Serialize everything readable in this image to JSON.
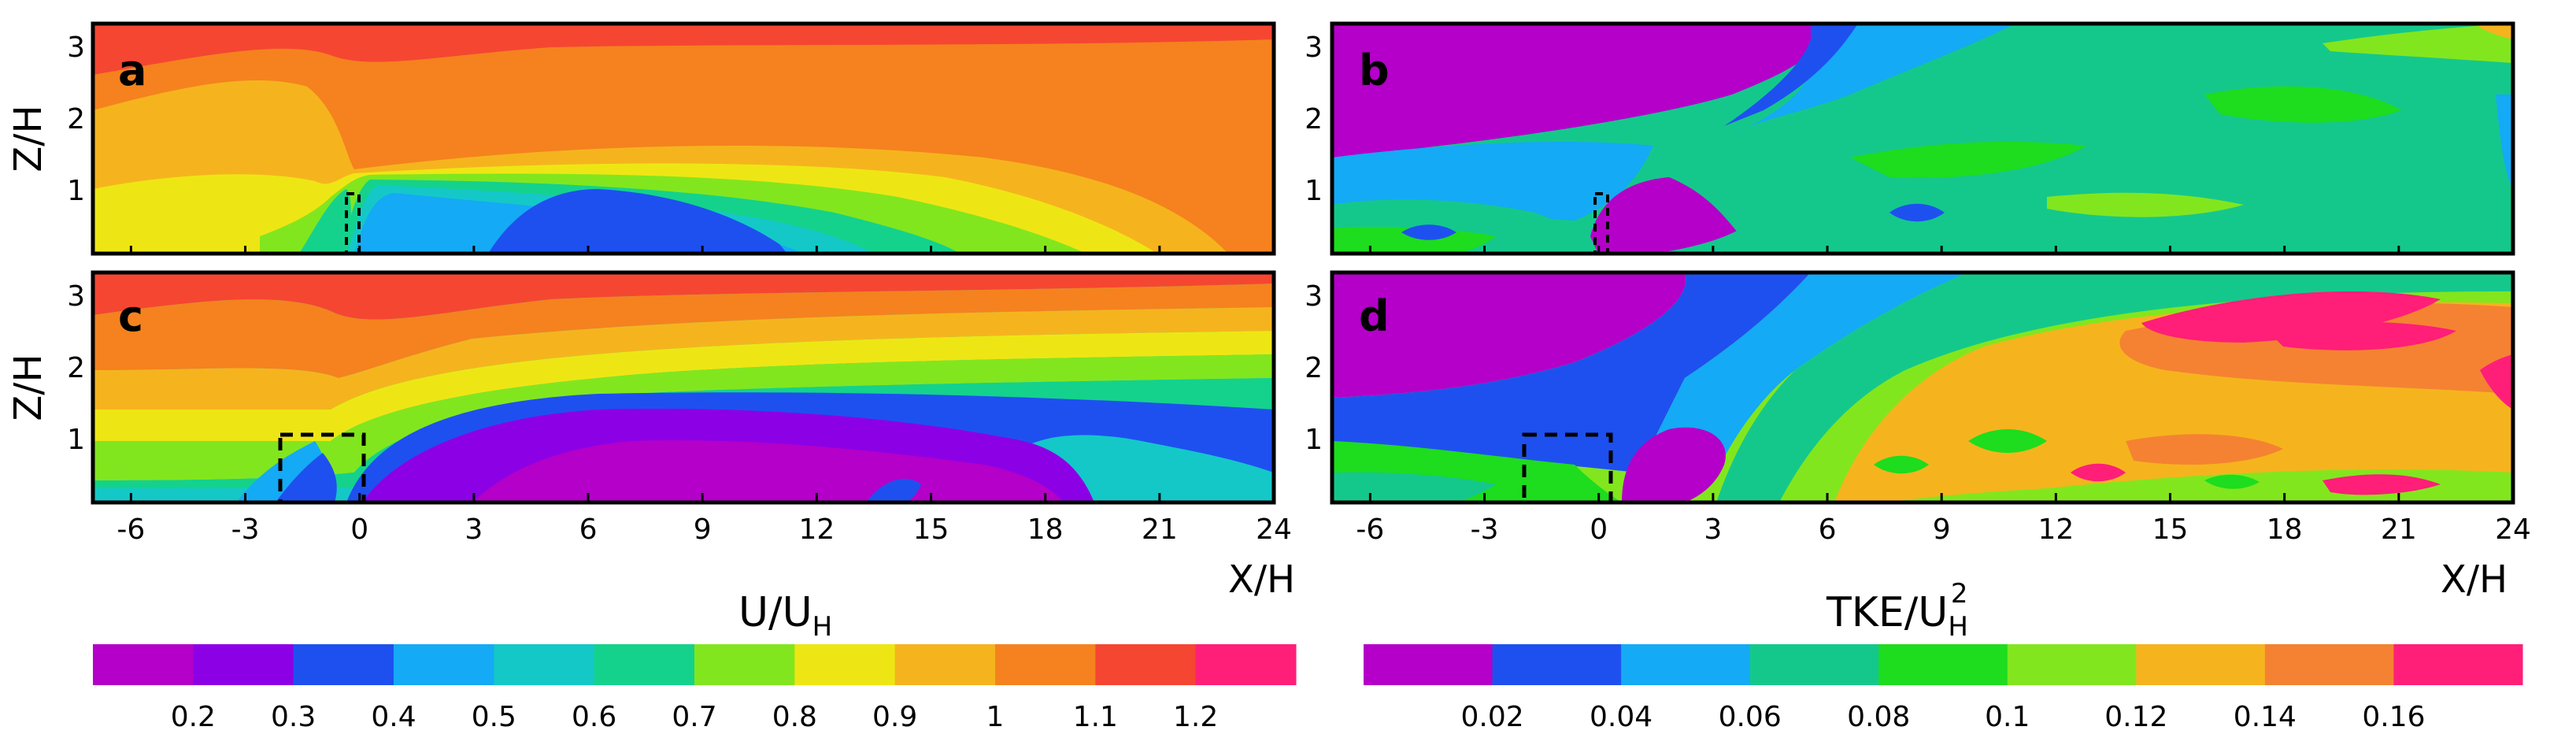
{
  "chart_data": [
    {
      "type": "heatmap",
      "panel": "a",
      "variable": "U/U_H",
      "xlabel": "X/H",
      "ylabel": "Z/H",
      "xlim": [
        -7,
        24
      ],
      "ylim": [
        0,
        3.2
      ],
      "xticks": [
        "-6",
        "-3",
        "0",
        "3",
        "6",
        "9",
        "12",
        "15",
        "18",
        "21",
        "24"
      ],
      "yticks": [
        "1",
        "2",
        "3"
      ]
    },
    {
      "type": "heatmap",
      "panel": "b",
      "variable": "TKE/U_H^2",
      "xlabel": "X/H",
      "ylabel": "Z/H",
      "xlim": [
        -7,
        24
      ],
      "ylim": [
        0,
        3.2
      ],
      "xticks": [
        "-6",
        "-3",
        "0",
        "3",
        "6",
        "9",
        "12",
        "15",
        "18",
        "21",
        "24"
      ],
      "yticks": [
        "1",
        "2",
        "3"
      ]
    },
    {
      "type": "heatmap",
      "panel": "c",
      "variable": "U/U_H",
      "xlabel": "X/H",
      "ylabel": "Z/H",
      "xlim": [
        -7,
        24
      ],
      "ylim": [
        0,
        3.2
      ],
      "xticks": [
        "-6",
        "-3",
        "0",
        "3",
        "6",
        "9",
        "12",
        "15",
        "18",
        "21",
        "24"
      ],
      "yticks": [
        "1",
        "2",
        "3"
      ]
    },
    {
      "type": "heatmap",
      "panel": "d",
      "variable": "TKE/U_H^2",
      "xlabel": "X/H",
      "ylabel": "Z/H",
      "xlim": [
        -7,
        24
      ],
      "ylim": [
        0,
        3.2
      ],
      "xticks": [
        "-6",
        "-3",
        "0",
        "3",
        "6",
        "9",
        "12",
        "15",
        "18",
        "21",
        "24"
      ],
      "yticks": [
        "1",
        "2",
        "3"
      ]
    }
  ],
  "labels": {
    "panel_a": "a",
    "panel_b": "b",
    "panel_c": "c",
    "panel_d": "d",
    "z_h": "Z/H",
    "x_h": "X/H"
  },
  "colorbars": {
    "velocity": {
      "title_main": "U/U",
      "title_sub": "H",
      "colors": [
        "#b400c8",
        "#8c00e6",
        "#1e50f0",
        "#14aaf5",
        "#14c8c8",
        "#14d28c",
        "#82e61e",
        "#eee614",
        "#f5b41e",
        "#f5821e",
        "#f54632",
        "#ff1e78"
      ],
      "ticks": [
        "0.2",
        "0.3",
        "0.4",
        "0.5",
        "0.6",
        "0.7",
        "0.8",
        "0.9",
        "1",
        "1.1",
        "1.2"
      ]
    },
    "tke": {
      "title_main": "TKE/U",
      "title_sub": "H",
      "title_sup": "2",
      "colors": [
        "#b400c8",
        "#1e50f0",
        "#14aaf5",
        "#14c88c",
        "#1edc1e",
        "#82e61e",
        "#f5b41e",
        "#f58232",
        "#ff1e78"
      ],
      "ticks": [
        "0.02",
        "0.04",
        "0.06",
        "0.08",
        "0.1",
        "0.12",
        "0.14",
        "0.16"
      ]
    }
  }
}
